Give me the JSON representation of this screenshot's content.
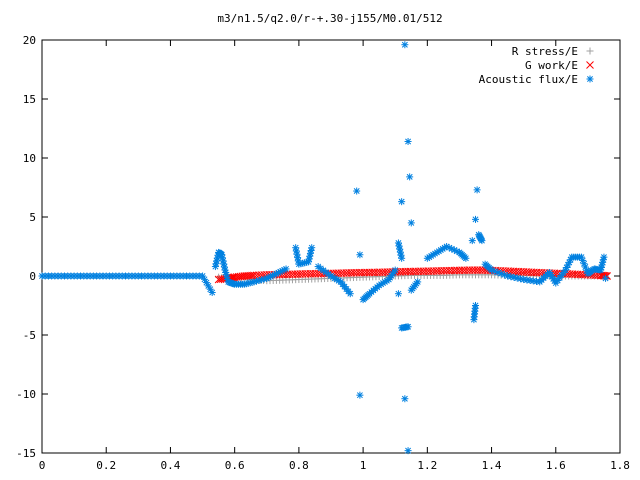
{
  "chart_data": {
    "type": "scatter",
    "title": "m3/n1.5/q2.0/r-+.30-j155/M0.01/512",
    "xlabel": "",
    "ylabel": "",
    "xlim": [
      0,
      1.8
    ],
    "ylim": [
      -15,
      20
    ],
    "x_ticks": [
      "0",
      "0.2",
      "0.4",
      "0.6",
      "0.8",
      "1",
      "1.2",
      "1.4",
      "1.6",
      "1.8"
    ],
    "y_ticks": [
      "20",
      "15",
      "10",
      "5",
      "0",
      "-5",
      "-10",
      "-15"
    ],
    "grid": false,
    "legend_position": "top-right",
    "series": [
      {
        "name": "R stress/E",
        "marker": "+",
        "color": "#a0a0a0",
        "points": [
          [
            0.55,
            -0.1
          ],
          [
            0.6,
            -0.2
          ],
          [
            0.65,
            -0.3
          ],
          [
            0.7,
            -0.4
          ],
          [
            0.75,
            -0.35
          ],
          [
            0.8,
            -0.3
          ],
          [
            0.85,
            -0.25
          ],
          [
            0.9,
            -0.2
          ],
          [
            0.95,
            -0.15
          ],
          [
            1.0,
            -0.1
          ],
          [
            1.05,
            -0.05
          ],
          [
            1.1,
            0.0
          ],
          [
            1.15,
            0.05
          ],
          [
            1.2,
            0.05
          ],
          [
            1.25,
            0.05
          ],
          [
            1.3,
            0.1
          ],
          [
            1.35,
            0.1
          ],
          [
            1.4,
            0.1
          ],
          [
            1.45,
            0.05
          ],
          [
            1.5,
            0.05
          ],
          [
            1.55,
            0.0
          ],
          [
            1.6,
            0.0
          ],
          [
            1.65,
            0.0
          ],
          [
            1.7,
            0.0
          ],
          [
            1.75,
            0.0
          ]
        ]
      },
      {
        "name": "G work/E",
        "marker": "x",
        "color": "#ff0000",
        "points": [
          [
            0.55,
            -0.3
          ],
          [
            0.58,
            -0.2
          ],
          [
            0.6,
            -0.1
          ],
          [
            0.63,
            0.0
          ],
          [
            0.66,
            0.05
          ],
          [
            0.7,
            0.1
          ],
          [
            0.74,
            0.12
          ],
          [
            0.78,
            0.15
          ],
          [
            0.82,
            0.18
          ],
          [
            0.86,
            0.2
          ],
          [
            0.9,
            0.22
          ],
          [
            0.94,
            0.25
          ],
          [
            0.98,
            0.28
          ],
          [
            1.02,
            0.3
          ],
          [
            1.06,
            0.32
          ],
          [
            1.1,
            0.35
          ],
          [
            1.14,
            0.38
          ],
          [
            1.18,
            0.4
          ],
          [
            1.22,
            0.42
          ],
          [
            1.26,
            0.45
          ],
          [
            1.3,
            0.48
          ],
          [
            1.34,
            0.5
          ],
          [
            1.38,
            0.5
          ],
          [
            1.42,
            0.45
          ],
          [
            1.46,
            0.4
          ],
          [
            1.5,
            0.35
          ],
          [
            1.54,
            0.3
          ],
          [
            1.58,
            0.25
          ],
          [
            1.62,
            0.2
          ],
          [
            1.66,
            0.15
          ],
          [
            1.7,
            0.1
          ],
          [
            1.74,
            0.05
          ],
          [
            1.76,
            0.0
          ]
        ]
      },
      {
        "name": "Acoustic flux/E",
        "marker": "*",
        "color": "#0080e0",
        "points": [
          [
            0.0,
            0.0
          ],
          [
            0.05,
            0.0
          ],
          [
            0.1,
            0.0
          ],
          [
            0.15,
            0.0
          ],
          [
            0.2,
            0.0
          ],
          [
            0.25,
            0.0
          ],
          [
            0.3,
            0.0
          ],
          [
            0.35,
            0.0
          ],
          [
            0.4,
            0.0
          ],
          [
            0.45,
            0.0
          ],
          [
            0.5,
            0.0
          ],
          [
            0.53,
            -1.4
          ],
          [
            0.54,
            0.8
          ],
          [
            0.55,
            2.0
          ],
          [
            0.56,
            1.8
          ],
          [
            0.57,
            0.5
          ],
          [
            0.58,
            -0.5
          ],
          [
            0.6,
            -0.7
          ],
          [
            0.63,
            -0.7
          ],
          [
            0.66,
            -0.5
          ],
          [
            0.7,
            -0.2
          ],
          [
            0.73,
            0.2
          ],
          [
            0.76,
            0.6
          ],
          [
            0.79,
            2.4
          ],
          [
            0.8,
            1.0
          ],
          [
            0.83,
            1.2
          ],
          [
            0.84,
            2.4
          ],
          [
            0.86,
            0.8
          ],
          [
            0.9,
            0.0
          ],
          [
            0.93,
            -0.5
          ],
          [
            0.96,
            -1.5
          ],
          [
            0.98,
            7.2
          ],
          [
            0.99,
            1.8
          ],
          [
            1.0,
            -2.0
          ],
          [
            1.02,
            -1.5
          ],
          [
            1.05,
            -0.8
          ],
          [
            1.08,
            -0.3
          ],
          [
            1.1,
            0.5
          ],
          [
            1.11,
            2.8
          ],
          [
            1.12,
            1.5
          ],
          [
            1.13,
            19.6
          ],
          [
            1.14,
            11.4
          ],
          [
            1.145,
            8.4
          ],
          [
            1.15,
            4.5
          ],
          [
            1.12,
            6.3
          ],
          [
            1.11,
            -1.5
          ],
          [
            1.12,
            -4.4
          ],
          [
            1.14,
            -4.3
          ],
          [
            1.13,
            -10.4
          ],
          [
            0.99,
            -10.1
          ],
          [
            1.14,
            -14.8
          ],
          [
            1.15,
            -1.2
          ],
          [
            1.17,
            -0.5
          ],
          [
            1.2,
            1.5
          ],
          [
            1.23,
            2.0
          ],
          [
            1.26,
            2.5
          ],
          [
            1.3,
            2.0
          ],
          [
            1.32,
            1.5
          ],
          [
            1.34,
            3.0
          ],
          [
            1.35,
            4.8
          ],
          [
            1.355,
            7.3
          ],
          [
            1.36,
            3.5
          ],
          [
            1.37,
            3.0
          ],
          [
            1.35,
            -2.5
          ],
          [
            1.345,
            -3.7
          ],
          [
            1.38,
            1.0
          ],
          [
            1.4,
            0.5
          ],
          [
            1.45,
            0.0
          ],
          [
            1.5,
            -0.3
          ],
          [
            1.55,
            -0.5
          ],
          [
            1.58,
            0.3
          ],
          [
            1.6,
            -0.6
          ],
          [
            1.63,
            0.5
          ],
          [
            1.65,
            1.6
          ],
          [
            1.68,
            1.6
          ],
          [
            1.7,
            0.2
          ],
          [
            1.72,
            0.6
          ],
          [
            1.74,
            0.5
          ],
          [
            1.75,
            1.6
          ],
          [
            1.755,
            -0.2
          ]
        ]
      }
    ]
  }
}
